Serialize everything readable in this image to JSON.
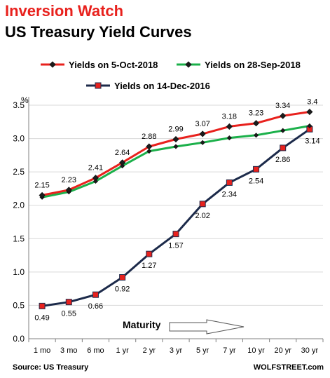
{
  "title": "Inversion Watch",
  "subtitle": "US Treasury Yield Curves",
  "footer": {
    "source": "Source: US Treasury",
    "brand": "WOLFSTREET.com"
  },
  "annotation": "Maturity",
  "colors": {
    "red": "#e8211d",
    "green": "#1bb04a",
    "navy": "#1c2a4a",
    "grid": "#d9d9d9"
  },
  "chart_data": {
    "type": "line",
    "ylabel": "%",
    "ylim": [
      0,
      3.5
    ],
    "yticks": [
      "0.0",
      "0.5",
      "1.0",
      "1.5",
      "2.0",
      "2.5",
      "3.0",
      "3.5"
    ],
    "categories": [
      "1 mo",
      "3 mo",
      "6 mo",
      "1 yr",
      "2 yr",
      "3 yr",
      "5 yr",
      "7 yr",
      "10 yr",
      "20 yr",
      "30 yr"
    ],
    "grid": "horizontal",
    "series": [
      {
        "name": "Yields on 5-Oct-2018",
        "color": "#e8211d",
        "marker": "diamond",
        "values": [
          2.15,
          2.23,
          2.41,
          2.64,
          2.88,
          2.99,
          3.07,
          3.18,
          3.23,
          3.34,
          3.4
        ],
        "labels": [
          "2.15",
          "2.23",
          "2.41",
          "2.64",
          "2.88",
          "2.99",
          "3.07",
          "3.18",
          "3.23",
          "3.34",
          "3.4"
        ]
      },
      {
        "name": "Yields on 28-Sep-2018",
        "color": "#1bb04a",
        "marker": "diamond",
        "values": [
          2.12,
          2.2,
          2.36,
          2.59,
          2.81,
          2.88,
          2.94,
          3.01,
          3.05,
          3.12,
          3.19
        ]
      },
      {
        "name": "Yields on 14-Dec-2016",
        "color": "#1c2a4a",
        "marker": "square",
        "values": [
          0.49,
          0.55,
          0.66,
          0.92,
          1.27,
          1.57,
          2.02,
          2.34,
          2.54,
          2.86,
          3.14
        ],
        "labels": [
          "0.49",
          "0.55",
          "0.66",
          "0.92",
          "1.27",
          "1.57",
          "2.02",
          "2.34",
          "2.54",
          "2.86",
          "3.14"
        ]
      }
    ]
  }
}
